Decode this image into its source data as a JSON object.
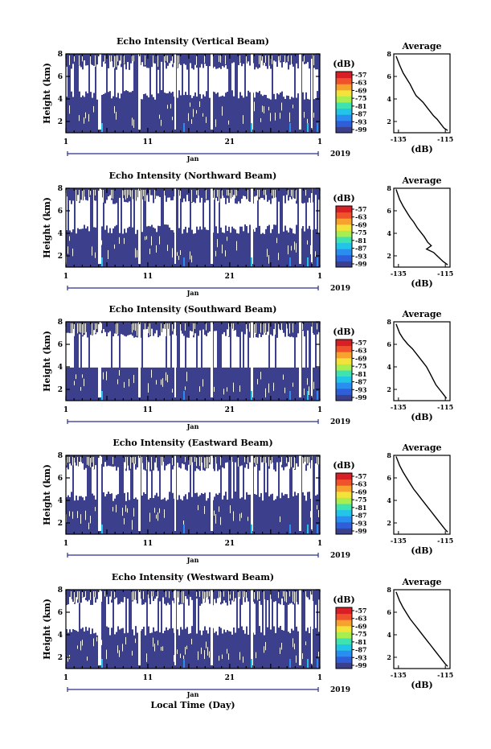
{
  "figure": {
    "xlabel": "Local Time (Day)",
    "year": "2019",
    "month": "Jan",
    "cbar_unit": "(dB)",
    "cbar_ticks": [
      "-57",
      "-63",
      "-69",
      "-75",
      "-81",
      "-87",
      "-93",
      "-99"
    ],
    "avg_title": "Average",
    "avg_xlabel": "(dB)"
  },
  "colormap": [
    "#3b3f8c",
    "#2f5fd8",
    "#2a8ef0",
    "#22c4e8",
    "#3fe3b0",
    "#a9ee4f",
    "#f2e23a",
    "#f7a12e",
    "#f0522c",
    "#d81f26"
  ],
  "chart_data": [
    {
      "type": "heatmap",
      "title": "Echo Intensity (Vertical Beam)",
      "ylabel": "Height (km)",
      "x_ticks": [
        "1",
        "11",
        "21",
        "1"
      ],
      "xlim": [
        1,
        32
      ],
      "y_ticks": [
        "2",
        "4",
        "6",
        "8"
      ],
      "ylim": [
        1,
        8
      ],
      "avg_profile": {
        "type": "line",
        "x_ticks": [
          "-135",
          "-115"
        ],
        "xlim": [
          -137,
          -113
        ],
        "y_ticks": [
          "2",
          "4",
          "6",
          "8"
        ],
        "ylim": [
          1,
          8
        ],
        "x": [
          -136,
          -134.5,
          -133,
          -131.5,
          -130,
          -128.8,
          -127.5,
          -126,
          -124.5,
          -123,
          -121.5,
          -120,
          -118.5,
          -117,
          -115.5,
          -114
        ],
        "y": [
          7.8,
          7.0,
          6.3,
          5.8,
          5.3,
          4.8,
          4.3,
          4.0,
          3.7,
          3.3,
          2.9,
          2.5,
          2.2,
          1.8,
          1.4,
          1.2
        ]
      }
    },
    {
      "type": "heatmap",
      "title": "Echo Intensity (Northward Beam)",
      "ylabel": "Height (km)",
      "x_ticks": [
        "1",
        "11",
        "21",
        "1"
      ],
      "xlim": [
        1,
        32
      ],
      "y_ticks": [
        "2",
        "4",
        "6",
        "8"
      ],
      "ylim": [
        1,
        8
      ],
      "avg_profile": {
        "type": "line",
        "x_ticks": [
          "-135",
          "-115"
        ],
        "xlim": [
          -137,
          -113
        ],
        "y_ticks": [
          "2",
          "4",
          "6",
          "8"
        ],
        "ylim": [
          1,
          8
        ],
        "x": [
          -136,
          -134.5,
          -133,
          -131.5,
          -130,
          -128.5,
          -127,
          -125.5,
          -124,
          -122.5,
          -121,
          -123,
          -120,
          -118,
          -116,
          -114
        ],
        "y": [
          7.9,
          7.0,
          6.4,
          5.9,
          5.4,
          5.0,
          4.5,
          4.1,
          3.7,
          3.2,
          2.9,
          2.6,
          2.3,
          1.9,
          1.5,
          1.2
        ]
      }
    },
    {
      "type": "heatmap",
      "title": "Echo Intensity (Southward Beam)",
      "ylabel": "Height (km)",
      "x_ticks": [
        "1",
        "11",
        "21",
        "1"
      ],
      "xlim": [
        1,
        32
      ],
      "y_ticks": [
        "2",
        "4",
        "6",
        "8"
      ],
      "ylim": [
        1,
        8
      ],
      "avg_profile": {
        "type": "line",
        "x_ticks": [
          "-135",
          "-115"
        ],
        "xlim": [
          -137,
          -113
        ],
        "y_ticks": [
          "2",
          "4",
          "6",
          "8"
        ],
        "ylim": [
          1,
          8
        ],
        "x": [
          -136,
          -134.5,
          -133,
          -131,
          -129,
          -127.5,
          -126,
          -124.5,
          -123,
          -122,
          -121,
          -120,
          -119,
          -117.5,
          -116,
          -114.5
        ],
        "y": [
          7.8,
          7.0,
          6.5,
          6.0,
          5.6,
          5.2,
          4.8,
          4.4,
          4.0,
          3.6,
          3.2,
          2.8,
          2.4,
          2.0,
          1.6,
          1.2
        ]
      }
    },
    {
      "type": "heatmap",
      "title": "Echo Intensity (Eastward Beam)",
      "ylabel": "Height (km)",
      "x_ticks": [
        "1",
        "11",
        "21",
        "1"
      ],
      "xlim": [
        1,
        32
      ],
      "y_ticks": [
        "2",
        "4",
        "6",
        "8"
      ],
      "ylim": [
        1,
        8
      ],
      "avg_profile": {
        "type": "line",
        "x_ticks": [
          "-135",
          "-115"
        ],
        "xlim": [
          -137,
          -113
        ],
        "y_ticks": [
          "2",
          "4",
          "6",
          "8"
        ],
        "ylim": [
          1,
          8
        ],
        "x": [
          -136,
          -134.5,
          -133,
          -131.5,
          -130,
          -128.5,
          -127,
          -125.5,
          -124,
          -122.5,
          -121,
          -119.5,
          -118,
          -116.5,
          -115,
          -114
        ],
        "y": [
          7.9,
          7.1,
          6.5,
          6.0,
          5.5,
          5.0,
          4.6,
          4.2,
          3.8,
          3.4,
          3.0,
          2.6,
          2.2,
          1.8,
          1.4,
          1.2
        ]
      }
    },
    {
      "type": "heatmap",
      "title": "Echo Intensity (Westward Beam)",
      "ylabel": "Height (km)",
      "x_ticks": [
        "1",
        "11",
        "21",
        "1"
      ],
      "xlim": [
        1,
        32
      ],
      "y_ticks": [
        "2",
        "4",
        "6",
        "8"
      ],
      "ylim": [
        1,
        8
      ],
      "avg_profile": {
        "type": "line",
        "x_ticks": [
          "-135",
          "-115"
        ],
        "xlim": [
          -137,
          -113
        ],
        "y_ticks": [
          "2",
          "4",
          "6",
          "8"
        ],
        "ylim": [
          1,
          8
        ],
        "x": [
          -136,
          -134.5,
          -133,
          -131.5,
          -130,
          -128.5,
          -127,
          -125.5,
          -124,
          -122.5,
          -121,
          -119.5,
          -118,
          -116.5,
          -115,
          -114
        ],
        "y": [
          7.8,
          7.0,
          6.4,
          5.9,
          5.4,
          5.0,
          4.6,
          4.2,
          3.8,
          3.4,
          3.0,
          2.6,
          2.2,
          1.8,
          1.4,
          1.2
        ]
      }
    }
  ]
}
